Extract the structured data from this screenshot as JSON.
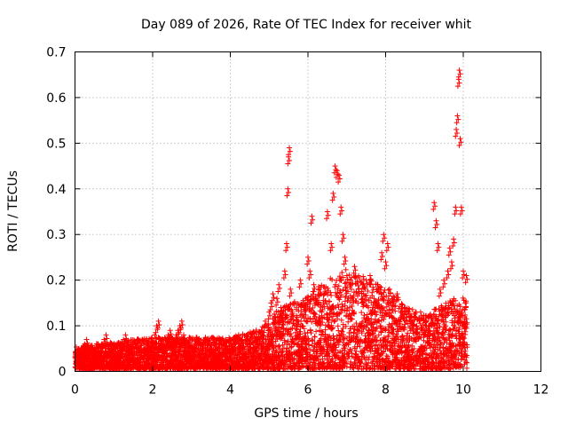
{
  "chart_data": {
    "type": "scatter",
    "title": "Day 089 of 2026, Rate Of TEC Index for receiver whit",
    "xlabel": "GPS time / hours",
    "ylabel": "ROTI / TECUs",
    "xlim": [
      0,
      12
    ],
    "ylim": [
      0,
      0.7
    ],
    "xticks": [
      0,
      2,
      4,
      6,
      8,
      10,
      12
    ],
    "xtick_labels": [
      "0",
      "2",
      "4",
      "6",
      "8",
      "10",
      "12"
    ],
    "yticks": [
      0,
      0.1,
      0.2,
      0.3,
      0.4,
      0.5,
      0.6,
      0.7
    ],
    "ytick_labels": [
      "0",
      "0.1",
      "0.2",
      "0.3",
      "0.4",
      "0.5",
      "0.6",
      "0.7"
    ],
    "grid": true,
    "marker": "+",
    "color": "#ff0000",
    "series": [
      {
        "name": "ROTI",
        "points": [
          [
            0.05,
            0.03
          ],
          [
            0.1,
            0.05
          ],
          [
            0.15,
            0.02
          ],
          [
            0.2,
            0.04
          ],
          [
            0.25,
            0.06
          ],
          [
            0.3,
            0.07
          ],
          [
            0.35,
            0.03
          ],
          [
            0.4,
            0.05
          ],
          [
            0.45,
            0.02
          ],
          [
            0.5,
            0.04
          ],
          [
            0.55,
            0.03
          ],
          [
            0.6,
            0.05
          ],
          [
            0.65,
            0.04
          ],
          [
            0.7,
            0.06
          ],
          [
            0.75,
            0.07
          ],
          [
            0.8,
            0.08
          ],
          [
            0.85,
            0.05
          ],
          [
            0.9,
            0.03
          ],
          [
            0.95,
            0.04
          ],
          [
            1.0,
            0.02
          ],
          [
            1.05,
            0.03
          ],
          [
            1.1,
            0.05
          ],
          [
            1.15,
            0.04
          ],
          [
            1.2,
            0.06
          ],
          [
            1.25,
            0.07
          ],
          [
            1.3,
            0.08
          ],
          [
            1.35,
            0.06
          ],
          [
            1.4,
            0.04
          ],
          [
            1.45,
            0.05
          ],
          [
            1.5,
            0.03
          ],
          [
            1.55,
            0.06
          ],
          [
            1.6,
            0.07
          ],
          [
            1.65,
            0.05
          ],
          [
            1.7,
            0.04
          ],
          [
            1.75,
            0.03
          ],
          [
            1.8,
            0.05
          ],
          [
            1.85,
            0.06
          ],
          [
            1.9,
            0.04
          ],
          [
            1.95,
            0.05
          ],
          [
            2.0,
            0.06
          ],
          [
            2.05,
            0.08
          ],
          [
            2.1,
            0.1
          ],
          [
            2.15,
            0.11
          ],
          [
            2.2,
            0.07
          ],
          [
            2.25,
            0.05
          ],
          [
            2.3,
            0.04
          ],
          [
            2.35,
            0.06
          ],
          [
            2.4,
            0.08
          ],
          [
            2.45,
            0.09
          ],
          [
            2.5,
            0.07
          ],
          [
            2.55,
            0.06
          ],
          [
            2.6,
            0.08
          ],
          [
            2.65,
            0.09
          ],
          [
            2.7,
            0.1
          ],
          [
            2.75,
            0.11
          ],
          [
            2.8,
            0.08
          ],
          [
            2.85,
            0.06
          ],
          [
            2.9,
            0.05
          ],
          [
            2.95,
            0.04
          ],
          [
            3.0,
            0.03
          ],
          [
            3.1,
            0.05
          ],
          [
            3.2,
            0.04
          ],
          [
            3.3,
            0.06
          ],
          [
            3.4,
            0.03
          ],
          [
            3.5,
            0.05
          ],
          [
            3.6,
            0.04
          ],
          [
            3.7,
            0.06
          ],
          [
            3.8,
            0.05
          ],
          [
            3.9,
            0.03
          ],
          [
            4.0,
            0.04
          ],
          [
            4.1,
            0.06
          ],
          [
            4.2,
            0.05
          ],
          [
            4.3,
            0.07
          ],
          [
            4.4,
            0.04
          ],
          [
            4.5,
            0.06
          ],
          [
            4.6,
            0.05
          ],
          [
            4.7,
            0.07
          ],
          [
            4.8,
            0.09
          ],
          [
            4.9,
            0.11
          ],
          [
            5.0,
            0.13
          ],
          [
            5.05,
            0.15
          ],
          [
            5.1,
            0.17
          ],
          [
            5.15,
            0.12
          ],
          [
            5.2,
            0.16
          ],
          [
            5.25,
            0.19
          ],
          [
            5.3,
            0.14
          ],
          [
            5.35,
            0.11
          ],
          [
            5.4,
            0.22
          ],
          [
            5.45,
            0.28
          ],
          [
            5.48,
            0.4
          ],
          [
            5.5,
            0.47
          ],
          [
            5.52,
            0.49
          ],
          [
            5.55,
            0.18
          ],
          [
            5.6,
            0.13
          ],
          [
            5.7,
            0.1
          ],
          [
            5.8,
            0.2
          ],
          [
            5.9,
            0.14
          ],
          [
            6.0,
            0.25
          ],
          [
            6.05,
            0.22
          ],
          [
            6.1,
            0.34
          ],
          [
            6.15,
            0.19
          ],
          [
            6.2,
            0.16
          ],
          [
            6.3,
            0.18
          ],
          [
            6.4,
            0.15
          ],
          [
            6.5,
            0.35
          ],
          [
            6.6,
            0.28
          ],
          [
            6.65,
            0.39
          ],
          [
            6.7,
            0.45
          ],
          [
            6.75,
            0.44
          ],
          [
            6.8,
            0.43
          ],
          [
            6.85,
            0.36
          ],
          [
            6.9,
            0.3
          ],
          [
            6.95,
            0.25
          ],
          [
            7.0,
            0.21
          ],
          [
            7.1,
            0.2
          ],
          [
            7.2,
            0.23
          ],
          [
            7.3,
            0.18
          ],
          [
            7.4,
            0.19
          ],
          [
            7.5,
            0.2
          ],
          [
            7.6,
            0.21
          ],
          [
            7.7,
            0.16
          ],
          [
            7.8,
            0.19
          ],
          [
            7.9,
            0.26
          ],
          [
            7.95,
            0.3
          ],
          [
            8.0,
            0.24
          ],
          [
            8.05,
            0.28
          ],
          [
            8.1,
            0.18
          ],
          [
            8.2,
            0.15
          ],
          [
            8.3,
            0.17
          ],
          [
            8.4,
            0.13
          ],
          [
            8.5,
            0.14
          ],
          [
            8.6,
            0.12
          ],
          [
            8.7,
            0.11
          ],
          [
            8.8,
            0.1
          ],
          [
            8.9,
            0.13
          ],
          [
            9.0,
            0.09
          ],
          [
            9.1,
            0.08
          ],
          [
            9.2,
            0.12
          ],
          [
            9.25,
            0.37
          ],
          [
            9.3,
            0.33
          ],
          [
            9.35,
            0.28
          ],
          [
            9.4,
            0.18
          ],
          [
            9.5,
            0.2
          ],
          [
            9.6,
            0.22
          ],
          [
            9.65,
            0.27
          ],
          [
            9.7,
            0.24
          ],
          [
            9.75,
            0.29
          ],
          [
            9.8,
            0.36
          ],
          [
            9.82,
            0.53
          ],
          [
            9.85,
            0.56
          ],
          [
            9.88,
            0.64
          ],
          [
            9.9,
            0.66
          ],
          [
            9.92,
            0.51
          ],
          [
            9.95,
            0.36
          ],
          [
            10.0,
            0.22
          ],
          [
            10.05,
            0.15
          ],
          [
            10.08,
            0.21
          ]
        ]
      }
    ],
    "band": {
      "x_start": 0.0,
      "x_end": 10.1,
      "description": "dense noise cloud",
      "envelope": [
        [
          0,
          0.05
        ],
        [
          1,
          0.06
        ],
        [
          2,
          0.07
        ],
        [
          3,
          0.07
        ],
        [
          4,
          0.07
        ],
        [
          4.8,
          0.09
        ],
        [
          5.2,
          0.13
        ],
        [
          5.6,
          0.15
        ],
        [
          6,
          0.16
        ],
        [
          6.5,
          0.2
        ],
        [
          7,
          0.22
        ],
        [
          7.5,
          0.2
        ],
        [
          8,
          0.18
        ],
        [
          8.5,
          0.14
        ],
        [
          9,
          0.12
        ],
        [
          9.5,
          0.15
        ],
        [
          10.1,
          0.16
        ]
      ]
    }
  }
}
